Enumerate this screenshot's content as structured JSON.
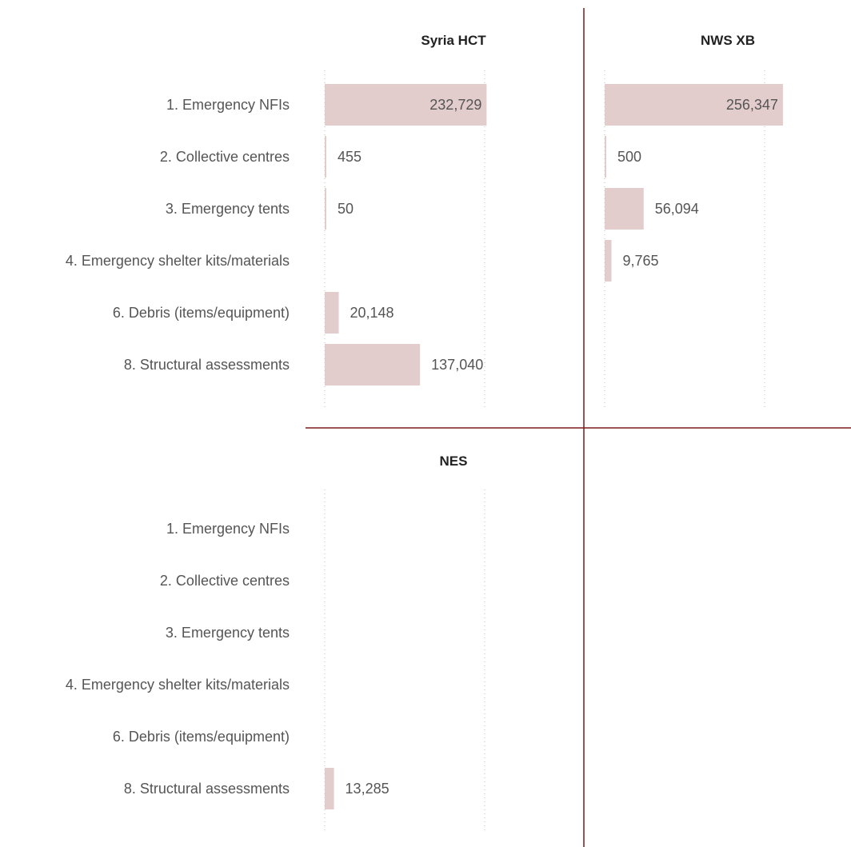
{
  "chart_data": [
    {
      "type": "bar",
      "orientation": "horizontal",
      "title": "Syria HCT",
      "categories": [
        "1. Emergency NFIs",
        "2. Collective centres",
        "3. Emergency tents",
        "4. Emergency shelter kits/materials",
        "6. Debris (items/equipment)",
        "8. Structural assessments"
      ],
      "values": [
        232729,
        455,
        50,
        null,
        20148,
        137040
      ],
      "value_labels": [
        "232,729",
        "455",
        "50",
        "",
        "20,148",
        "137,040"
      ],
      "xlim": [
        0,
        300000
      ],
      "gridlines": [
        0,
        230000
      ],
      "bar_color": "#e3cccc"
    },
    {
      "type": "bar",
      "orientation": "horizontal",
      "title": "NWS XB",
      "categories": [
        "1. Emergency NFIs",
        "2. Collective centres",
        "3. Emergency tents",
        "4. Emergency shelter kits/materials",
        "6. Debris (items/equipment)",
        "8. Structural assessments"
      ],
      "values": [
        256347,
        500,
        56094,
        9765,
        null,
        null
      ],
      "value_labels": [
        "256,347",
        "500",
        "56,094",
        "9,765",
        "",
        ""
      ],
      "xlim": [
        0,
        300000
      ],
      "gridlines": [
        0,
        230000
      ],
      "bar_color": "#e3cccc"
    },
    {
      "type": "bar",
      "orientation": "horizontal",
      "title": "NES",
      "categories": [
        "1. Emergency NFIs",
        "2. Collective centres",
        "3. Emergency tents",
        "4. Emergency shelter kits/materials",
        "6. Debris (items/equipment)",
        "8. Structural assessments"
      ],
      "values": [
        null,
        null,
        null,
        null,
        null,
        13285
      ],
      "value_labels": [
        "",
        "",
        "",
        "",
        "",
        "13,285"
      ],
      "xlim": [
        0,
        300000
      ],
      "gridlines": [
        0,
        230000
      ],
      "bar_color": "#e3cccc"
    }
  ],
  "colors": {
    "divider": "#7b1a1a",
    "gridline": "#bbbbbb",
    "bar": "#e3cccc",
    "text": "#555555",
    "title": "#222222"
  }
}
